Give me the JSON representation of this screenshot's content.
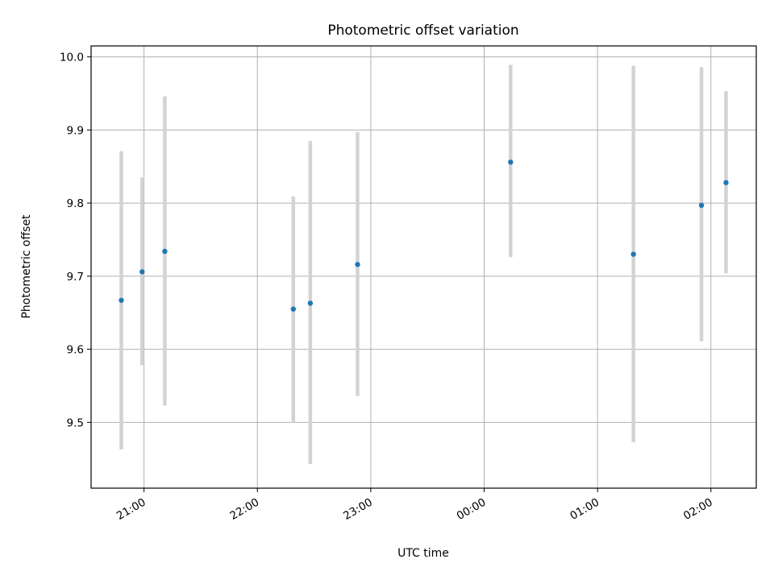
{
  "chart_data": {
    "type": "scatter",
    "title": "Photometric offset variation",
    "xlabel": "UTC time",
    "ylabel": "Photometric offset",
    "x_type": "time",
    "xlim": [
      "20:32",
      "02:24"
    ],
    "ylim": [
      9.41,
      10.015
    ],
    "x_ticks": [
      "21:00",
      "22:00",
      "23:00",
      "00:00",
      "01:00",
      "02:00"
    ],
    "y_ticks": [
      "9.5",
      "9.6",
      "9.7",
      "9.8",
      "9.9",
      "10.0"
    ],
    "grid": true,
    "error_bar_color": "#d3d3d3",
    "point_color": "#1f77b4",
    "points": [
      {
        "time": "20:48",
        "y": 9.667,
        "ylow": 9.463,
        "yhigh": 9.871
      },
      {
        "time": "20:59",
        "y": 9.706,
        "ylow": 9.578,
        "yhigh": 9.835
      },
      {
        "time": "21:11",
        "y": 9.734,
        "ylow": 9.523,
        "yhigh": 9.946
      },
      {
        "time": "22:19",
        "y": 9.655,
        "ylow": 9.5,
        "yhigh": 9.809
      },
      {
        "time": "22:28",
        "y": 9.663,
        "ylow": 9.443,
        "yhigh": 9.885
      },
      {
        "time": "22:53",
        "y": 9.716,
        "ylow": 9.536,
        "yhigh": 9.897
      },
      {
        "time": "00:14",
        "y": 9.856,
        "ylow": 9.726,
        "yhigh": 9.989
      },
      {
        "time": "01:19",
        "y": 9.73,
        "ylow": 9.473,
        "yhigh": 9.988
      },
      {
        "time": "01:55",
        "y": 9.797,
        "ylow": 9.611,
        "yhigh": 9.986
      },
      {
        "time": "02:08",
        "y": 9.828,
        "ylow": 9.704,
        "yhigh": 9.953
      }
    ]
  }
}
